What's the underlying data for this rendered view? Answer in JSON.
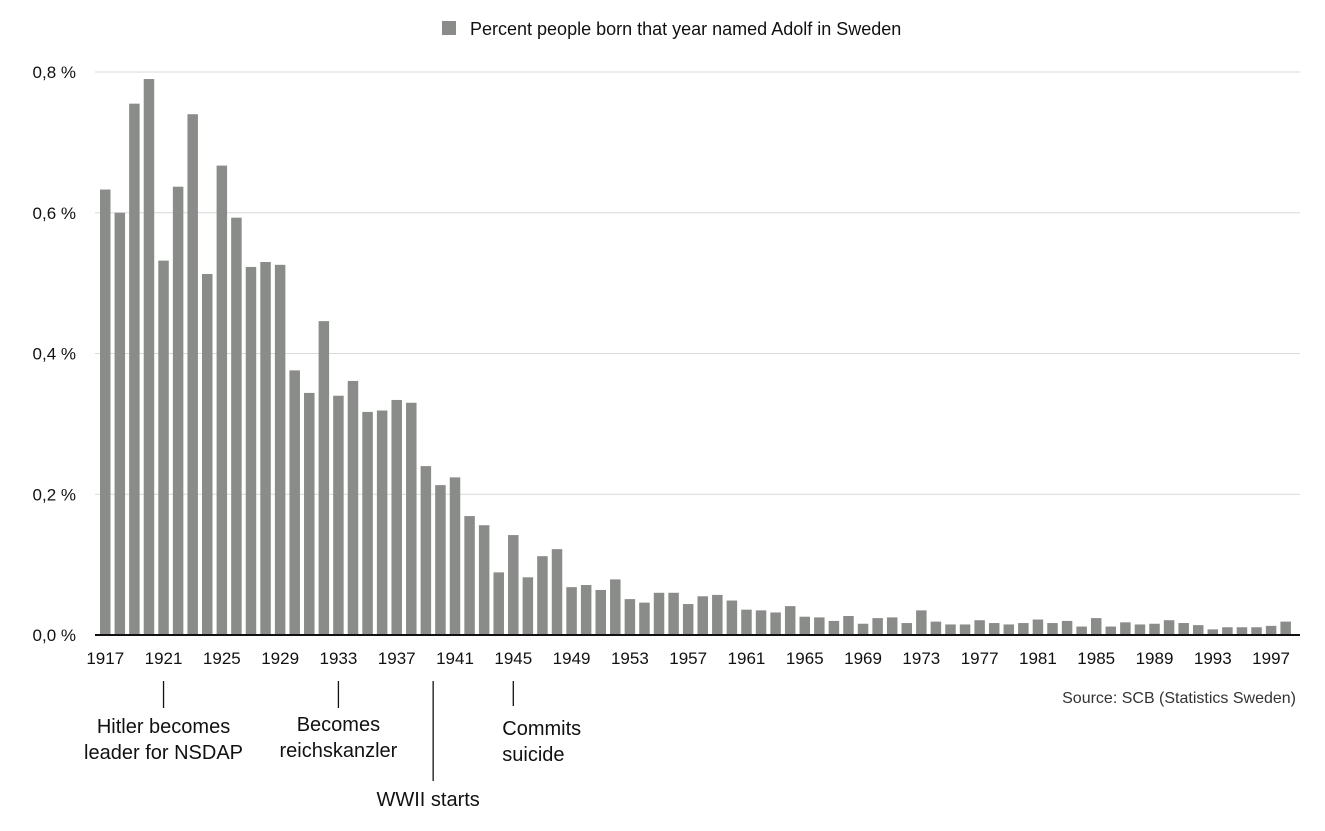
{
  "chart_data": {
    "type": "bar",
    "title": "",
    "legend": {
      "label": "Percent people born that year named Adolf in Sweden",
      "placement": "top-center"
    },
    "bar_color": "#8a8c89",
    "x": [
      1917,
      1918,
      1919,
      1920,
      1921,
      1922,
      1923,
      1924,
      1925,
      1926,
      1927,
      1928,
      1929,
      1930,
      1931,
      1932,
      1933,
      1934,
      1935,
      1936,
      1937,
      1938,
      1939,
      1940,
      1941,
      1942,
      1943,
      1944,
      1945,
      1946,
      1947,
      1948,
      1949,
      1950,
      1951,
      1952,
      1953,
      1954,
      1955,
      1956,
      1957,
      1958,
      1959,
      1960,
      1961,
      1962,
      1963,
      1964,
      1965,
      1966,
      1967,
      1968,
      1969,
      1970,
      1971,
      1972,
      1973,
      1974,
      1975,
      1976,
      1977,
      1978,
      1979,
      1980,
      1981,
      1982,
      1983,
      1984,
      1985,
      1986,
      1987,
      1988,
      1989,
      1990,
      1991,
      1992,
      1993,
      1994,
      1995,
      1996,
      1997,
      1998
    ],
    "values": [
      0.633,
      0.6,
      0.755,
      0.79,
      0.532,
      0.637,
      0.74,
      0.513,
      0.667,
      0.593,
      0.523,
      0.53,
      0.526,
      0.376,
      0.344,
      0.446,
      0.34,
      0.361,
      0.317,
      0.319,
      0.334,
      0.33,
      0.24,
      0.213,
      0.224,
      0.169,
      0.156,
      0.089,
      0.142,
      0.082,
      0.112,
      0.122,
      0.068,
      0.071,
      0.064,
      0.079,
      0.051,
      0.046,
      0.06,
      0.06,
      0.044,
      0.055,
      0.057,
      0.049,
      0.036,
      0.035,
      0.032,
      0.041,
      0.026,
      0.025,
      0.02,
      0.027,
      0.016,
      0.024,
      0.025,
      0.017,
      0.035,
      0.019,
      0.015,
      0.015,
      0.021,
      0.017,
      0.015,
      0.017,
      0.022,
      0.017,
      0.02,
      0.012,
      0.024,
      0.012,
      0.018,
      0.015,
      0.016,
      0.021,
      0.017,
      0.014,
      0.008,
      0.011,
      0.011,
      0.011,
      0.013,
      0.019
    ],
    "x_tick_labels": [
      "1917",
      "1921",
      "1925",
      "1929",
      "1933",
      "1937",
      "1941",
      "1945",
      "1949",
      "1953",
      "1957",
      "1961",
      "1965",
      "1969",
      "1973",
      "1977",
      "1981",
      "1985",
      "1989",
      "1993",
      "1997"
    ],
    "y_tick_labels": [
      "0,0 %",
      "0,2 %",
      "0,4 %",
      "0,6 %",
      "0,8 %"
    ],
    "y_ticks": [
      0,
      0.2,
      0.4,
      0.6,
      0.8
    ],
    "ylim": [
      0,
      0.8
    ],
    "xlabel": "",
    "ylabel": "",
    "grid": true,
    "source": "Source: SCB (Statistics Sweden)",
    "annotations": [
      {
        "year": 1921,
        "lines": [
          "Hitler becomes",
          "leader for NSDAP"
        ]
      },
      {
        "year": 1933,
        "lines": [
          "Becomes",
          "reichskanzler"
        ]
      },
      {
        "year": 1939.5,
        "lines": [
          "WWII starts"
        ]
      },
      {
        "year": 1945,
        "lines": [
          "Commits",
          "suicide"
        ]
      }
    ]
  }
}
